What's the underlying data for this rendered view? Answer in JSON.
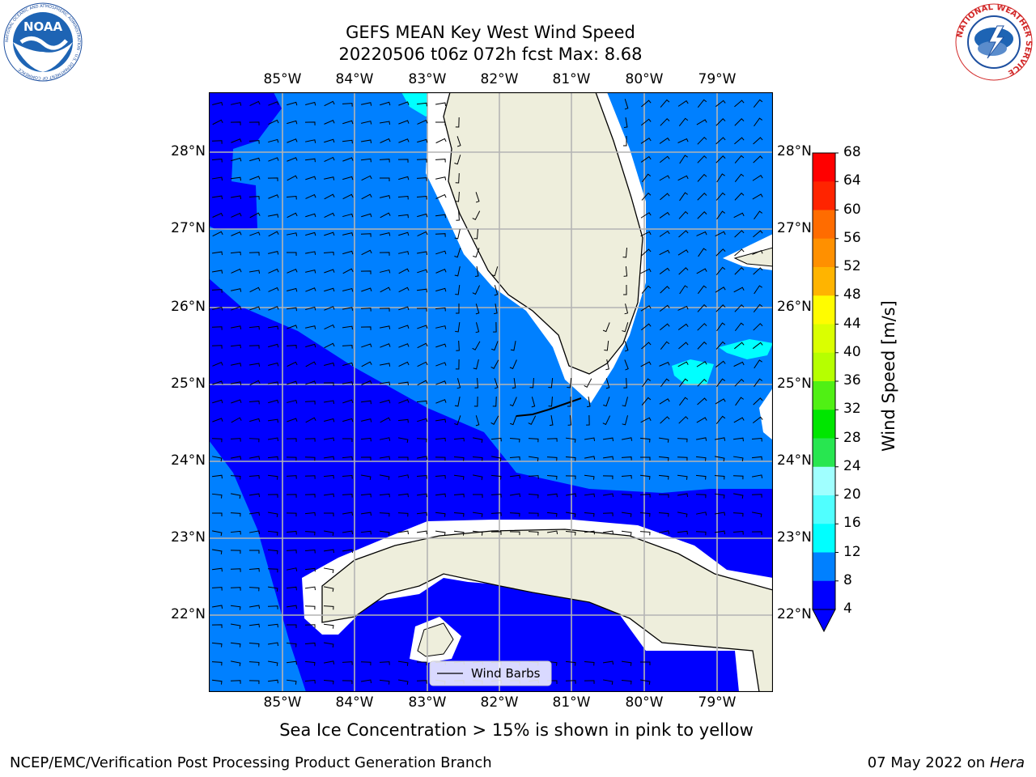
{
  "title_line1": "GEFS MEAN Key West Wind Speed",
  "title_line2": "20220506 t06z 072h fcst   Max: 8.68",
  "logos": {
    "left": "NOAA",
    "left_ring": "NATIONAL OCEANIC AND ATMOSPHERIC ADMINISTRATION · U.S. DEPARTMENT OF COMMERCE",
    "right": "NATIONAL WEATHER SERVICE"
  },
  "longitude_labels": [
    "85°W",
    "84°W",
    "83°W",
    "82°W",
    "81°W",
    "80°W",
    "79°W"
  ],
  "latitude_labels": [
    "28°N",
    "27°N",
    "26°N",
    "25°N",
    "24°N",
    "23°N",
    "22°N"
  ],
  "legend": {
    "wind_barbs_label": "Wind Barbs"
  },
  "colorbar": {
    "label": "Wind Speed [m/s]",
    "ticks": [
      "68",
      "64",
      "60",
      "56",
      "52",
      "48",
      "44",
      "40",
      "36",
      "32",
      "28",
      "24",
      "20",
      "16",
      "12",
      "8",
      "4"
    ],
    "colors": [
      "#ff0000",
      "#ff2400",
      "#ff4800",
      "#ff6c00",
      "#ff9000",
      "#ffb400",
      "#ffd800",
      "#fffc00",
      "#daff00",
      "#b6ff00",
      "#92ff00",
      "#50f014",
      "#00e600",
      "#28e650",
      "#50f078",
      "#a0ffff",
      "#50ffff",
      "#00ffff",
      "#00c8ff",
      "#0080ff",
      "#0000ff"
    ]
  },
  "map_colors": {
    "land": "#eeeedc",
    "coast_buffer": "#ffffff",
    "wind_4_8": "#0080ff",
    "wind_lt_4": "#0000ff",
    "wind_8_12": "#00ffff",
    "grid": "#b4b4b4"
  },
  "caption": "Sea Ice Concentration > 15% is shown in pink to yellow",
  "footer_left": "NCEP/EMC/Verification Post Processing Product Generation Branch",
  "footer_right_text": "07 May 2022 on",
  "footer_right_italic": "Hera"
}
